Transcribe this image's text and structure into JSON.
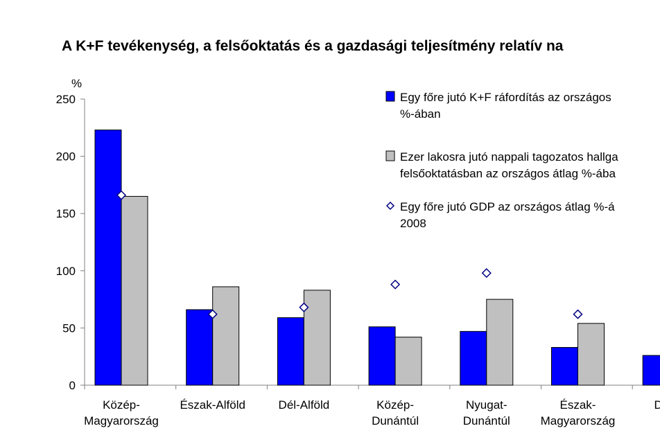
{
  "chart_data": {
    "type": "bar",
    "title": "A K+F tevékenység, a felsőoktatás és a gazdasági teljesítmény relatív na",
    "ylabel": "%",
    "ylim": [
      0,
      250
    ],
    "yticks": [
      0,
      50,
      100,
      150,
      200,
      250
    ],
    "categories": [
      [
        "Közép-",
        "Magyarország"
      ],
      [
        "Észak-Alföld"
      ],
      [
        "Dél-Alföld"
      ],
      [
        "Közép-",
        "Dunántúl"
      ],
      [
        "Nyugat-",
        "Dunántúl"
      ],
      [
        "Észak-",
        "Magyarország"
      ],
      [
        "Dél-D"
      ]
    ],
    "series": [
      {
        "name": [
          "Egy főre jutó K+F ráfordítás az országos",
          "%-ában"
        ],
        "type": "bar",
        "color": "#0000ff",
        "values": [
          223,
          66,
          59,
          51,
          47,
          33,
          26
        ]
      },
      {
        "name": [
          "Ezer lakosra jutó nappali tagozatos hallga",
          "felsőoktatásban az országos átlag %-ába"
        ],
        "type": "bar",
        "color": "#c0c0c0",
        "values": [
          165,
          86,
          83,
          42,
          75,
          54,
          null
        ]
      },
      {
        "name": [
          "Egy főre jutó GDP az országos átlag %-á",
          "2008"
        ],
        "type": "marker",
        "marker": "diamond",
        "color": "#000080",
        "values": [
          166,
          62,
          68,
          88,
          98,
          62,
          null
        ]
      }
    ],
    "grid": false,
    "legend": "top-right"
  }
}
